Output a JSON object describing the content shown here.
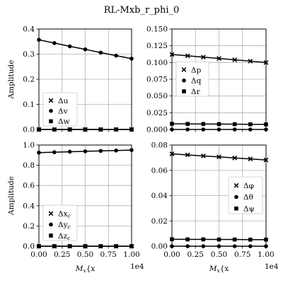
{
  "figure": {
    "title": "RL-Mxb_r_phi_0"
  },
  "shared": {
    "x": [
      0,
      1666.7,
      3333.3,
      5000,
      6666.7,
      8333.3,
      10000
    ],
    "xlim": [
      0,
      10000
    ],
    "xticks": [
      "0.00",
      "0.25",
      "0.50",
      "0.75",
      "1.00"
    ],
    "xtick_values": [
      0,
      2500,
      5000,
      7500,
      10000
    ],
    "x_offset_label": "1e4",
    "xlabel": "M_{x_b}, r, ft-lbf-s",
    "ylabel": "Amplitude"
  },
  "chart_data": [
    {
      "type": "line",
      "panel": "top-left",
      "ylim": [
        0,
        0.4
      ],
      "yticks": [
        "0.0",
        "0.1",
        "0.2",
        "0.3",
        "0.4"
      ],
      "ytick_values": [
        0,
        0.1,
        0.2,
        0.3,
        0.4
      ],
      "grid": true,
      "legend_position": "lower-left",
      "series": [
        {
          "name": "Δu",
          "marker": "x",
          "values": [
            0,
            0,
            0,
            0,
            0,
            0,
            0
          ]
        },
        {
          "name": "Δv",
          "marker": "circle",
          "values": [
            0.357,
            0.344,
            0.331,
            0.319,
            0.306,
            0.294,
            0.282
          ]
        },
        {
          "name": "Δw",
          "marker": "square",
          "values": [
            0,
            0,
            0,
            0,
            0,
            0,
            0
          ]
        }
      ]
    },
    {
      "type": "line",
      "panel": "top-right",
      "ylim": [
        0,
        0.15
      ],
      "yticks": [
        "0.000",
        "0.025",
        "0.050",
        "0.075",
        "0.100",
        "0.125",
        "0.150"
      ],
      "ytick_values": [
        0,
        0.025,
        0.05,
        0.075,
        0.1,
        0.125,
        0.15
      ],
      "grid": true,
      "legend_position": "center-left",
      "series": [
        {
          "name": "Δp",
          "marker": "x",
          "values": [
            0.112,
            0.11,
            0.108,
            0.106,
            0.104,
            0.102,
            0.1
          ]
        },
        {
          "name": "Δq",
          "marker": "circle",
          "values": [
            0,
            0,
            0,
            0,
            0,
            0,
            0
          ]
        },
        {
          "name": "Δr",
          "marker": "square",
          "values": [
            0.0085,
            0.0083,
            0.0082,
            0.008,
            0.0079,
            0.0077,
            0.0076
          ]
        }
      ]
    },
    {
      "type": "line",
      "panel": "bottom-left",
      "ylim": [
        0,
        1.0
      ],
      "yticks": [
        "0.0",
        "0.2",
        "0.4",
        "0.6",
        "0.8",
        "1.0"
      ],
      "ytick_values": [
        0,
        0.2,
        0.4,
        0.6,
        0.8,
        1.0
      ],
      "grid": true,
      "legend_position": "lower-left",
      "series": [
        {
          "name": "Δx_c",
          "marker": "x",
          "values": [
            0,
            0,
            0,
            0,
            0,
            0,
            0
          ]
        },
        {
          "name": "Δy_c",
          "marker": "circle",
          "values": [
            0.925,
            0.929,
            0.934,
            0.938,
            0.942,
            0.946,
            0.95
          ]
        },
        {
          "name": "Δz_c",
          "marker": "square",
          "values": [
            0,
            0,
            0,
            0,
            0,
            0,
            0
          ]
        }
      ]
    },
    {
      "type": "line",
      "panel": "bottom-right",
      "ylim": [
        0,
        0.08
      ],
      "yticks": [
        "0.00",
        "0.02",
        "0.04",
        "0.06",
        "0.08"
      ],
      "ytick_values": [
        0,
        0.02,
        0.04,
        0.06,
        0.08
      ],
      "grid": true,
      "legend_position": "center-right",
      "series": [
        {
          "name": "Δφ",
          "marker": "x",
          "values": [
            0.073,
            0.0722,
            0.0714,
            0.0706,
            0.0698,
            0.069,
            0.0682
          ]
        },
        {
          "name": "Δθ",
          "marker": "circle",
          "values": [
            0,
            0,
            0,
            0,
            0,
            0,
            0
          ]
        },
        {
          "name": "Δψ",
          "marker": "square",
          "values": [
            0.0055,
            0.0054,
            0.0054,
            0.0053,
            0.0053,
            0.0052,
            0.0052
          ]
        }
      ]
    }
  ]
}
